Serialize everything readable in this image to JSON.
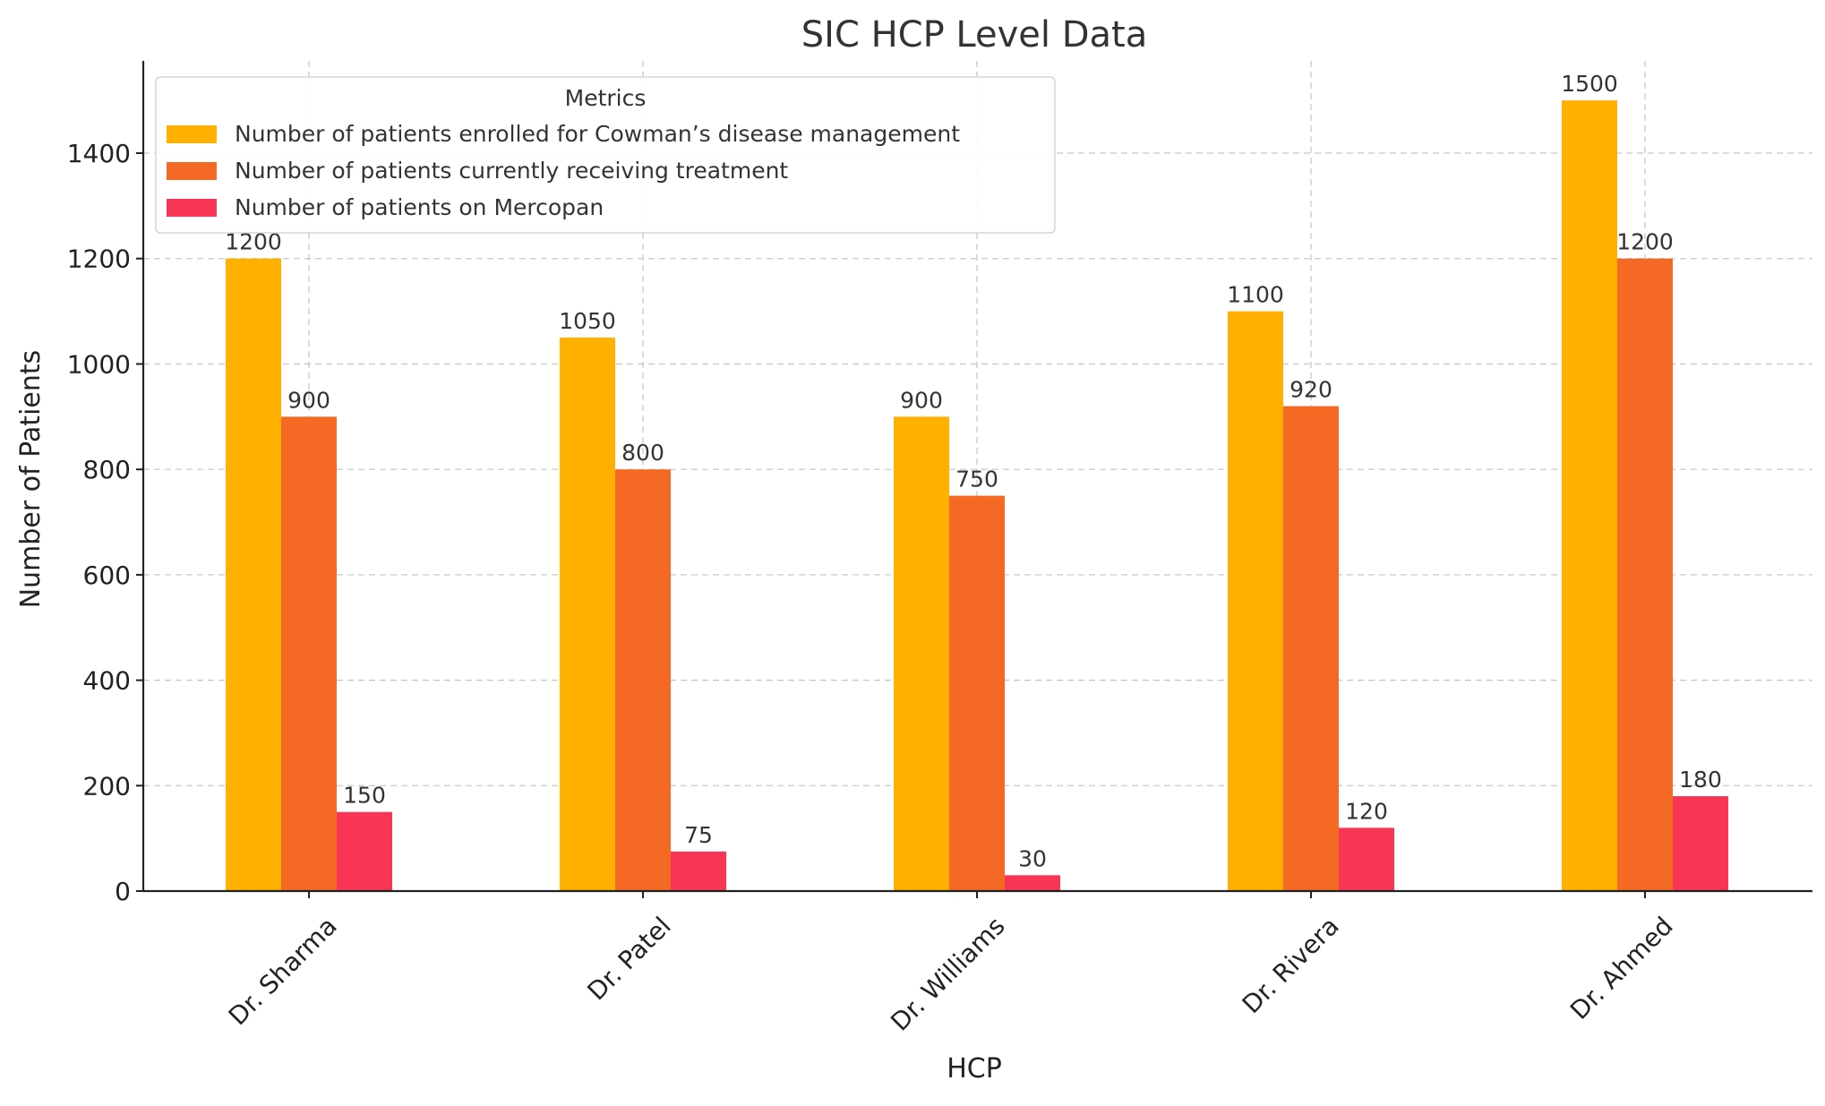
{
  "chart_data": {
    "type": "bar",
    "title": "SIC HCP Level Data",
    "xlabel": "HCP",
    "ylabel": "Number of Patients",
    "categories": [
      "Dr. Sharma",
      "Dr. Patel",
      "Dr. Williams",
      "Dr. Rivera",
      "Dr. Ahmed"
    ],
    "ylim": [
      0,
      1575
    ],
    "yticks": [
      0,
      200,
      400,
      600,
      800,
      1000,
      1200,
      1400
    ],
    "grid": true,
    "legend": {
      "title": "Metrics",
      "placement": "top-left"
    },
    "series": [
      {
        "name": "Number of patients enrolled for Cowman’s disease management",
        "color": "#FFB000",
        "values": [
          1200,
          1050,
          900,
          1100,
          1500
        ]
      },
      {
        "name": "Number of patients currently receiving treatment",
        "color": "#F46A25",
        "values": [
          900,
          800,
          750,
          920,
          1200
        ]
      },
      {
        "name": "Number of patients on Mercopan",
        "color": "#F83555",
        "values": [
          150,
          75,
          30,
          120,
          180
        ]
      }
    ]
  }
}
